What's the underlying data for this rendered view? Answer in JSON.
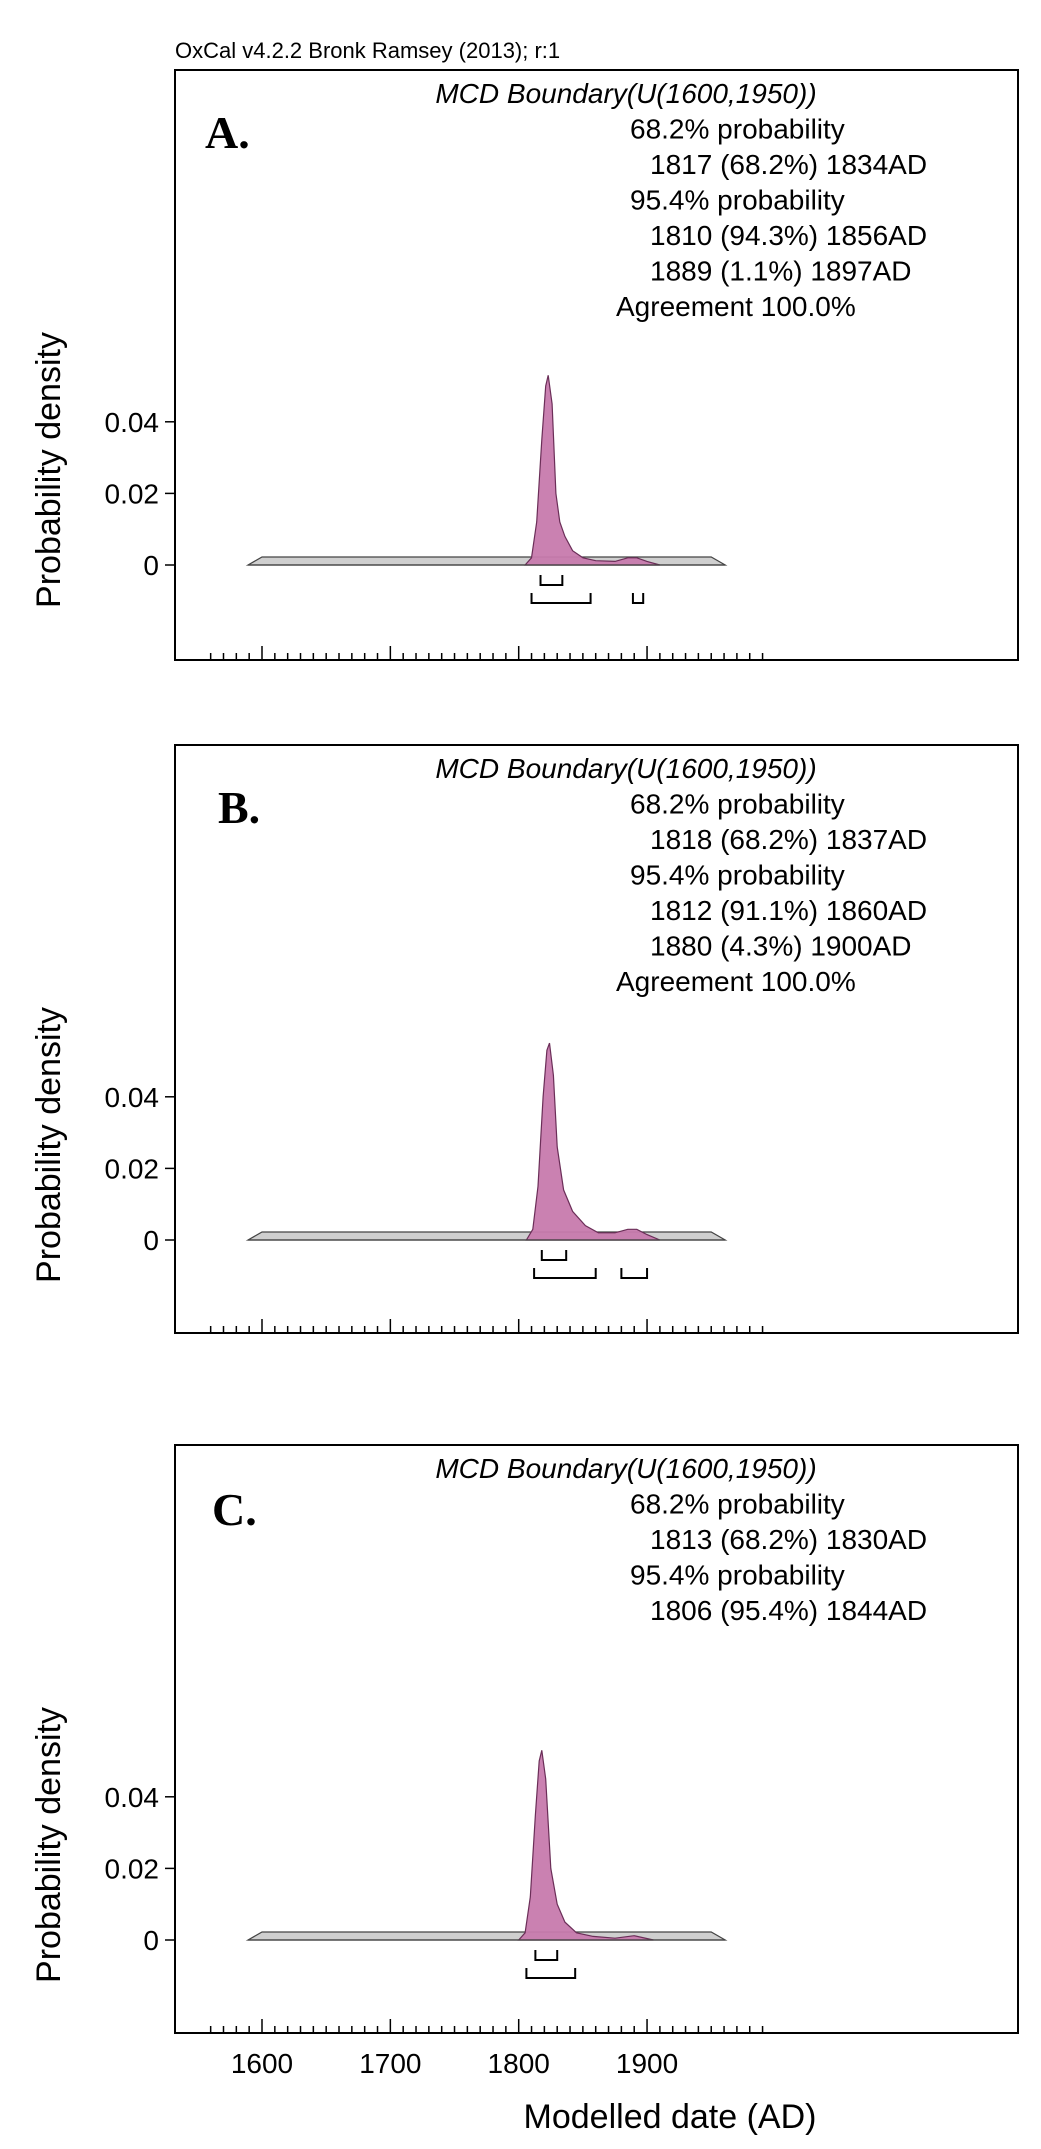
{
  "header": "OxCal v4.2.2 Bronk Ramsey (2013); r:1",
  "xlabel": "Modelled date (AD)",
  "ylabel": "Probability density",
  "x_ticks": [
    1600,
    1700,
    1800,
    1900
  ],
  "y_ticks": [
    "0.04",
    "0.02",
    "0"
  ],
  "colors": {
    "posterior": "#c77aad",
    "posterior_edge": "#6b2e58",
    "prior": "#cfcfcf",
    "prior_edge": "#444444",
    "axis": "#000000"
  },
  "chart_data": [
    {
      "type": "area",
      "panel": "A.",
      "title": "MCD Boundary(U(1600,1950))",
      "annotations": [
        "68.2% probability",
        "1817 (68.2%) 1834AD",
        "95.4% probability",
        "1810 (94.3%) 1856AD",
        "1889 (1.1%) 1897AD",
        "Agreement 100.0%"
      ],
      "xlim": [
        1550,
        1990
      ],
      "ylim": [
        0,
        0.055
      ],
      "prior_range": [
        1600,
        1950
      ],
      "posterior": {
        "x": [
          1805,
          1810,
          1814,
          1818,
          1821,
          1823,
          1826,
          1829,
          1832,
          1836,
          1842,
          1850,
          1860,
          1875,
          1885,
          1892,
          1900,
          1910
        ],
        "y": [
          0,
          0.002,
          0.012,
          0.035,
          0.05,
          0.053,
          0.045,
          0.02,
          0.012,
          0.008,
          0.004,
          0.002,
          0.0012,
          0.001,
          0.002,
          0.002,
          0.001,
          0
        ]
      },
      "ranges_68": [
        [
          1817,
          1834
        ]
      ],
      "ranges_95": [
        [
          1810,
          1856
        ],
        [
          1889,
          1897
        ]
      ]
    },
    {
      "type": "area",
      "panel": "B.",
      "title": "MCD Boundary(U(1600,1950))",
      "annotations": [
        "68.2% probability",
        "1818 (68.2%) 1837AD",
        "95.4% probability",
        "1812 (91.1%) 1860AD",
        "1880 (4.3%) 1900AD",
        "Agreement 100.0%"
      ],
      "xlim": [
        1550,
        1990
      ],
      "ylim": [
        0,
        0.055
      ],
      "prior_range": [
        1600,
        1950
      ],
      "posterior": {
        "x": [
          1806,
          1811,
          1815,
          1819,
          1822,
          1824,
          1827,
          1830,
          1835,
          1842,
          1852,
          1862,
          1875,
          1885,
          1892,
          1900,
          1910
        ],
        "y": [
          0,
          0.003,
          0.015,
          0.04,
          0.053,
          0.055,
          0.046,
          0.026,
          0.014,
          0.008,
          0.004,
          0.002,
          0.002,
          0.003,
          0.003,
          0.0015,
          0
        ]
      },
      "ranges_68": [
        [
          1818,
          1837
        ]
      ],
      "ranges_95": [
        [
          1812,
          1860
        ],
        [
          1880,
          1900
        ]
      ]
    },
    {
      "type": "area",
      "panel": "C.",
      "title": "MCD Boundary(U(1600,1950))",
      "annotations": [
        "68.2% probability",
        "1813 (68.2%) 1830AD",
        "95.4% probability",
        "1806 (95.4%) 1844AD"
      ],
      "xlim": [
        1550,
        1990
      ],
      "ylim": [
        0,
        0.055
      ],
      "prior_range": [
        1600,
        1950
      ],
      "posterior": {
        "x": [
          1800,
          1805,
          1809,
          1813,
          1816,
          1818,
          1821,
          1825,
          1830,
          1836,
          1845,
          1858,
          1875,
          1890,
          1905
        ],
        "y": [
          0,
          0.002,
          0.012,
          0.035,
          0.05,
          0.053,
          0.045,
          0.02,
          0.01,
          0.005,
          0.002,
          0.001,
          0.0005,
          0.0012,
          0
        ]
      },
      "ranges_68": [
        [
          1813,
          1830
        ]
      ],
      "ranges_95": [
        [
          1806,
          1844
        ]
      ]
    }
  ]
}
